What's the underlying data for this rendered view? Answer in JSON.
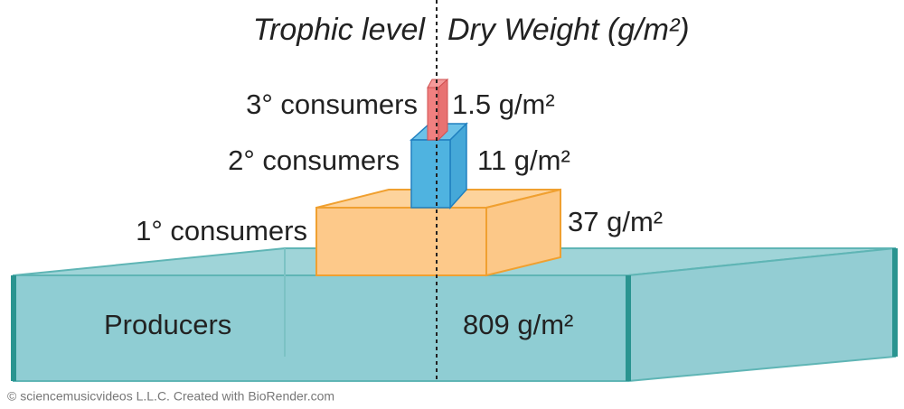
{
  "header": {
    "left": "Trophic level",
    "right": "Dry Weight (g/m²)"
  },
  "levels": [
    {
      "label": "3° consumers",
      "value": "1.5 g/m²"
    },
    {
      "label": "2° consumers",
      "value": "11 g/m²"
    },
    {
      "label": "1° consumers",
      "value": "37 g/m²"
    },
    {
      "label": "Producers",
      "value": "809 g/m²"
    }
  ],
  "footer": "© sciencemusicvideos L.L.C. Created with BioRender.com"
}
